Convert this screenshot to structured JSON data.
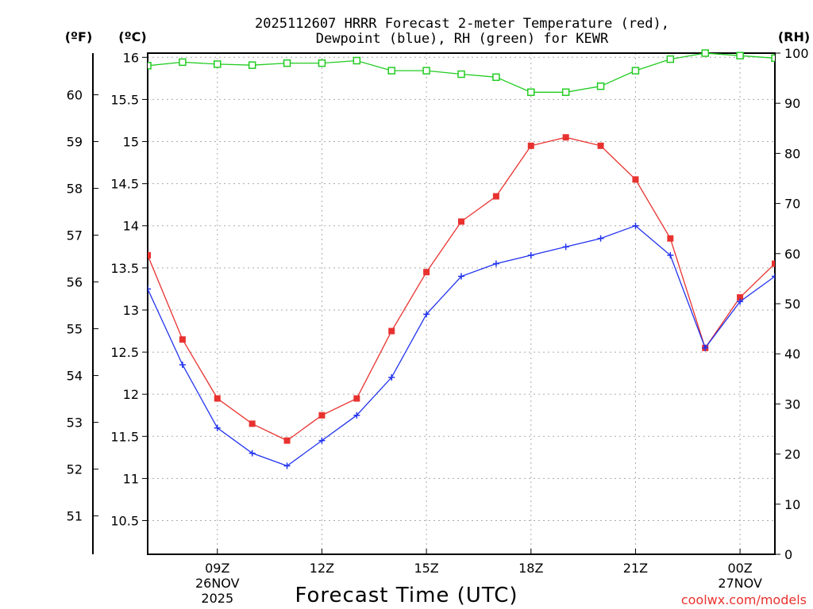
{
  "chart_data": {
    "type": "line",
    "title": {
      "line1": "2025112607 HRRR Forecast 2-meter Temperature (red),",
      "line2": "Dewpoint (blue), RH (green) for KEWR"
    },
    "xlabel": "Forecast Time (UTC)",
    "credit": "coolwx.com/models",
    "units": {
      "fahrenheit": "(ºF)",
      "celsius": "(ºC)",
      "rh": "(RH)"
    },
    "x_hours": [
      7,
      8,
      9,
      10,
      11,
      12,
      13,
      14,
      15,
      16,
      17,
      18,
      19,
      20,
      21,
      22,
      23,
      24,
      25
    ],
    "xlim": [
      7,
      25
    ],
    "x_ticks": [
      {
        "hour": 9,
        "label": "09Z",
        "sub1": "26NOV",
        "sub2": "2025"
      },
      {
        "hour": 12,
        "label": "12Z"
      },
      {
        "hour": 15,
        "label": "15Z"
      },
      {
        "hour": 18,
        "label": "18Z"
      },
      {
        "hour": 21,
        "label": "21Z"
      },
      {
        "hour": 24,
        "label": "00Z",
        "sub1": "27NOV"
      }
    ],
    "celsius_axis": {
      "range": [
        10.1,
        16.05
      ],
      "ticks": [
        "10.5",
        "11",
        "11.5",
        "12",
        "12.5",
        "13",
        "13.5",
        "14",
        "14.5",
        "15",
        "15.5",
        "16"
      ]
    },
    "fahrenheit_axis": {
      "ticks": [
        "51",
        "52",
        "53",
        "54",
        "55",
        "56",
        "57",
        "58",
        "59",
        "60"
      ]
    },
    "rh_axis": {
      "range": [
        0,
        100
      ],
      "ticks": [
        "0",
        "10",
        "20",
        "30",
        "40",
        "50",
        "60",
        "70",
        "80",
        "90",
        "100"
      ]
    },
    "series": [
      {
        "name": "Temperature",
        "axis": "celsius",
        "color": "#e8322f",
        "marker": "filled-square",
        "values": [
          13.65,
          12.65,
          11.95,
          11.65,
          11.45,
          11.75,
          11.95,
          12.75,
          13.45,
          14.05,
          14.35,
          14.95,
          15.05,
          14.95,
          14.55,
          13.85,
          12.55,
          13.15,
          13.55
        ]
      },
      {
        "name": "Dewpoint",
        "axis": "celsius",
        "color": "#2233ee",
        "marker": "plus",
        "values": [
          13.25,
          12.35,
          11.6,
          11.3,
          11.15,
          11.45,
          11.75,
          12.2,
          12.95,
          13.4,
          13.55,
          13.65,
          13.75,
          13.85,
          14.0,
          13.65,
          12.55,
          13.1,
          13.4
        ]
      },
      {
        "name": "RH",
        "axis": "rh",
        "color": "#22cc22",
        "marker": "open-square",
        "values": [
          97.5,
          98.2,
          97.8,
          97.6,
          98.0,
          98.0,
          98.5,
          96.5,
          96.5,
          95.8,
          95.2,
          92.2,
          92.2,
          93.4,
          96.5,
          98.8,
          100.0,
          99.5,
          99.0
        ]
      }
    ]
  }
}
